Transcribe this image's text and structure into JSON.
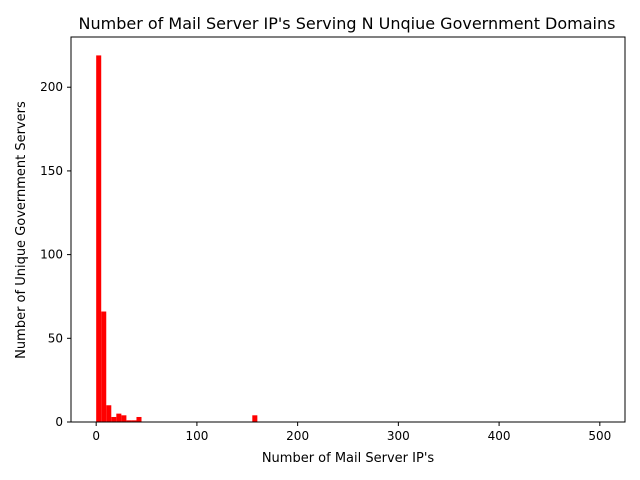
{
  "chart_data": {
    "type": "bar",
    "title": "Number of Mail Server IP's Serving N Unqiue Government Domains",
    "xlabel": "Number of Mail Server IP's",
    "ylabel": "Number of Unique Government Servers",
    "xlim": [
      -25,
      525
    ],
    "ylim": [
      0,
      230
    ],
    "xticks": [
      0,
      100,
      200,
      300,
      400,
      500
    ],
    "yticks": [
      0,
      50,
      100,
      150,
      200
    ],
    "grid": false,
    "legend": "none",
    "bar_color": "#ff0000",
    "bin_width": 5,
    "bins": [
      {
        "x_start": 0,
        "value": 219
      },
      {
        "x_start": 5,
        "value": 66
      },
      {
        "x_start": 10,
        "value": 10
      },
      {
        "x_start": 15,
        "value": 3
      },
      {
        "x_start": 20,
        "value": 5
      },
      {
        "x_start": 25,
        "value": 4
      },
      {
        "x_start": 30,
        "value": 1
      },
      {
        "x_start": 35,
        "value": 1
      },
      {
        "x_start": 40,
        "value": 3
      },
      {
        "x_start": 155,
        "value": 4
      }
    ]
  }
}
